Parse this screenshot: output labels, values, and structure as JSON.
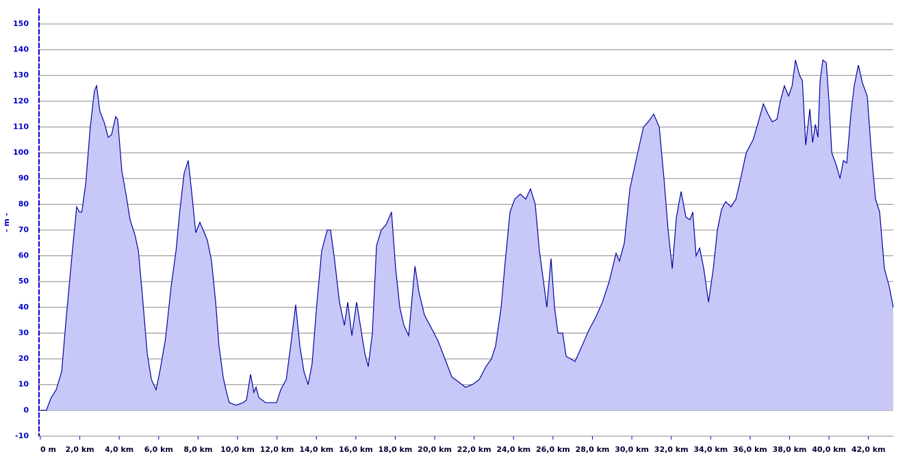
{
  "chart_data": {
    "type": "area",
    "y_label": "- m -",
    "line_color": "#0000a0",
    "fill_color": "#c8c8f8",
    "grid": true,
    "xlim": [
      0,
      43.26
    ],
    "ylim": [
      -10,
      156
    ],
    "xticks": [
      {
        "value": 0,
        "label": "0 m"
      },
      {
        "value": 2,
        "label": "2,0 km"
      },
      {
        "value": 4,
        "label": "4,0 km"
      },
      {
        "value": 6,
        "label": "6,0 km"
      },
      {
        "value": 8,
        "label": "8,0 km"
      },
      {
        "value": 10,
        "label": "10,0 km"
      },
      {
        "value": 12,
        "label": "12,0 km"
      },
      {
        "value": 14,
        "label": "14,0 km"
      },
      {
        "value": 16,
        "label": "16,0 km"
      },
      {
        "value": 18,
        "label": "18,0 km"
      },
      {
        "value": 20,
        "label": "20,0 km"
      },
      {
        "value": 22,
        "label": "22,0 km"
      },
      {
        "value": 24,
        "label": "24,0 km"
      },
      {
        "value": 26,
        "label": "26,0 km"
      },
      {
        "value": 28,
        "label": "28,0 km"
      },
      {
        "value": 30,
        "label": "30,0 km"
      },
      {
        "value": 32,
        "label": "32,0 km"
      },
      {
        "value": 34,
        "label": "34,0 km"
      },
      {
        "value": 36,
        "label": "36,0 km"
      },
      {
        "value": 38,
        "label": "38,0 km"
      },
      {
        "value": 40,
        "label": "40,0 km"
      },
      {
        "value": 42,
        "label": "42,0 km"
      }
    ],
    "yticks": [
      -10,
      0,
      10,
      20,
      30,
      40,
      50,
      60,
      70,
      80,
      90,
      100,
      110,
      120,
      130,
      140,
      150
    ],
    "x": [
      0,
      0.3,
      0.55,
      0.8,
      1.08,
      1.3,
      1.6,
      1.84,
      1.98,
      2.1,
      2.3,
      2.53,
      2.74,
      2.85,
      3.02,
      3.23,
      3.44,
      3.61,
      3.82,
      3.92,
      4.13,
      4.34,
      4.55,
      4.8,
      4.97,
      5.17,
      5.42,
      5.63,
      5.87,
      6.08,
      6.35,
      6.63,
      6.88,
      7.08,
      7.29,
      7.5,
      7.67,
      7.88,
      8.09,
      8.26,
      8.47,
      8.68,
      8.89,
      9.06,
      9.27,
      9.41,
      9.58,
      9.93,
      10.28,
      10.45,
      10.66,
      10.83,
      10.94,
      11.08,
      11.42,
      11.98,
      12.19,
      12.47,
      12.71,
      12.95,
      13.16,
      13.37,
      13.58,
      13.78,
      14.03,
      14.27,
      14.55,
      14.72,
      14.93,
      15.17,
      15.42,
      15.59,
      15.8,
      16.04,
      16.25,
      16.46,
      16.63,
      16.84,
      17.05,
      17.29,
      17.53,
      17.81,
      18.02,
      18.23,
      18.44,
      18.68,
      19.0,
      19.2,
      19.48,
      19.83,
      20.17,
      20.52,
      20.87,
      21.22,
      21.56,
      21.91,
      22.26,
      22.6,
      22.88,
      23.09,
      23.37,
      23.58,
      23.82,
      24.06,
      24.34,
      24.62,
      24.86,
      25.1,
      25.31,
      25.52,
      25.69,
      25.9,
      26.08,
      26.25,
      26.49,
      26.67,
      27.12,
      27.47,
      27.81,
      28.16,
      28.51,
      28.85,
      29.2,
      29.37,
      29.62,
      29.9,
      30.24,
      30.59,
      30.83,
      31.11,
      31.39,
      31.63,
      31.84,
      32.05,
      32.26,
      32.5,
      32.74,
      32.95,
      33.09,
      33.26,
      33.44,
      33.65,
      33.89,
      34.13,
      34.34,
      34.55,
      34.76,
      35.03,
      35.28,
      35.52,
      35.8,
      36.15,
      36.42,
      36.67,
      36.91,
      37.12,
      37.36,
      37.53,
      37.74,
      37.95,
      38.13,
      38.3,
      38.51,
      38.65,
      38.82,
      39.03,
      39.17,
      39.31,
      39.44,
      39.55,
      39.69,
      39.86,
      40.0,
      40.14,
      40.38,
      40.56,
      40.73,
      40.9,
      41.11,
      41.28,
      41.49,
      41.7,
      41.94,
      42.15,
      42.36,
      42.57,
      42.81,
      43.06,
      43.26
    ],
    "values": [
      0,
      0,
      5,
      8,
      15,
      35,
      60,
      79,
      77,
      77,
      88,
      110,
      124,
      126,
      116,
      112,
      106,
      107,
      114,
      113,
      93,
      84,
      74,
      68,
      62,
      45,
      22,
      12,
      8,
      16,
      28,
      48,
      62,
      78,
      92,
      97,
      85,
      69,
      73,
      70,
      66,
      58,
      42,
      25,
      13,
      8,
      3,
      2,
      3,
      4,
      14,
      7,
      9,
      5,
      3,
      3,
      8,
      12,
      26,
      41,
      25,
      15,
      10,
      18,
      42,
      62,
      70,
      70,
      58,
      42,
      33,
      42,
      29,
      42,
      32,
      22,
      17,
      30,
      64,
      70,
      72,
      77,
      55,
      40,
      33,
      29,
      56,
      46,
      37,
      32,
      27,
      20,
      13,
      11,
      9,
      10,
      12,
      17,
      20,
      25,
      40,
      58,
      77,
      82,
      84,
      82,
      86,
      80,
      62,
      50,
      40,
      59,
      40,
      30,
      30,
      21,
      19,
      25,
      31,
      36,
      42,
      50,
      61,
      58,
      65,
      86,
      98,
      110,
      112,
      115,
      110,
      90,
      70,
      55,
      75,
      85,
      75,
      74,
      77,
      60,
      63,
      55,
      42,
      55,
      70,
      78,
      81,
      79,
      82,
      90,
      100,
      105,
      112,
      119,
      115,
      112,
      113,
      120,
      126,
      122,
      126,
      136,
      130,
      128,
      103,
      117,
      104,
      111,
      106,
      128,
      136,
      135,
      120,
      100,
      95,
      90,
      97,
      96,
      115,
      126,
      134,
      127,
      122,
      100,
      82,
      77,
      55,
      48,
      40
    ]
  }
}
